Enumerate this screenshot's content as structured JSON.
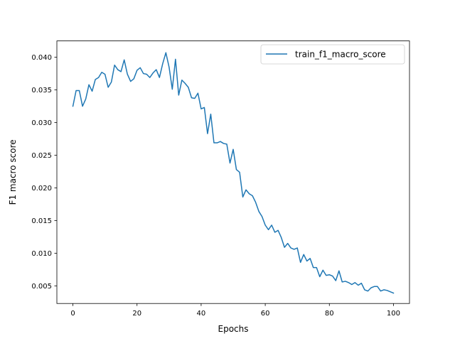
{
  "chart_data": {
    "type": "line",
    "title": "",
    "xlabel": "Epochs",
    "ylabel": "F1 macro score",
    "xlim": [
      -5,
      105
    ],
    "ylim": [
      0.0023,
      0.0425
    ],
    "x_ticks": [
      0,
      20,
      40,
      60,
      80,
      100
    ],
    "y_ticks": [
      0.005,
      0.01,
      0.015,
      0.02,
      0.025,
      0.03,
      0.035,
      0.04
    ],
    "x_tick_labels": [
      "0",
      "20",
      "40",
      "60",
      "80",
      "100"
    ],
    "y_tick_labels": [
      "0.005",
      "0.010",
      "0.015",
      "0.020",
      "0.025",
      "0.030",
      "0.035",
      "0.040"
    ],
    "grid": false,
    "legend": {
      "position": "top-right"
    },
    "colors": {
      "series": "#1f77b4",
      "axes": "#000000",
      "background": "#ffffff"
    },
    "series": [
      {
        "name": "train_f1_macro_score",
        "color": "#1f77b4",
        "values": [
          0.0325,
          0.0349,
          0.0349,
          0.0325,
          0.0336,
          0.0358,
          0.0348,
          0.0366,
          0.0369,
          0.0377,
          0.0374,
          0.0354,
          0.0362,
          0.0388,
          0.0381,
          0.0378,
          0.0396,
          0.0374,
          0.0363,
          0.0367,
          0.038,
          0.0384,
          0.0375,
          0.0374,
          0.0369,
          0.0376,
          0.0381,
          0.0369,
          0.039,
          0.0407,
          0.0385,
          0.0351,
          0.0397,
          0.0342,
          0.0365,
          0.036,
          0.0354,
          0.0338,
          0.0337,
          0.0345,
          0.0321,
          0.0323,
          0.0283,
          0.0313,
          0.0269,
          0.0269,
          0.0271,
          0.0268,
          0.0267,
          0.0238,
          0.0259,
          0.0228,
          0.0224,
          0.0186,
          0.0197,
          0.0191,
          0.0188,
          0.0178,
          0.0164,
          0.0156,
          0.0143,
          0.0136,
          0.0143,
          0.0132,
          0.0135,
          0.0124,
          0.0109,
          0.0115,
          0.0108,
          0.0106,
          0.0108,
          0.0086,
          0.0098,
          0.0088,
          0.0092,
          0.0078,
          0.0078,
          0.0064,
          0.0074,
          0.0066,
          0.0067,
          0.0065,
          0.0058,
          0.0073,
          0.0056,
          0.0057,
          0.0055,
          0.0052,
          0.0055,
          0.0051,
          0.0054,
          0.0044,
          0.0042,
          0.0047,
          0.0049,
          0.0049,
          0.0042,
          0.0044,
          0.0043,
          0.0041,
          0.0039
        ]
      }
    ]
  }
}
